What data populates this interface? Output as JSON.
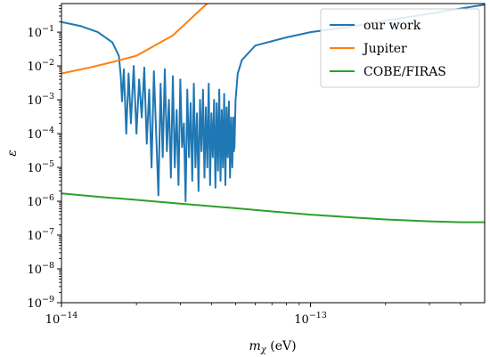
{
  "chart_data": {
    "type": "line",
    "title": "",
    "xlabel": "m_χ (eV)",
    "ylabel": "ε",
    "xscale": "log",
    "yscale": "log",
    "xlim": [
      1e-14,
      5e-13
    ],
    "ylim": [
      1e-09,
      0.7
    ],
    "grid": false,
    "legend_position": "top-right",
    "x_ticks": [
      {
        "value": 1e-14,
        "base": "10",
        "exp": "−14"
      },
      {
        "value": 1e-13,
        "base": "10",
        "exp": "−13"
      }
    ],
    "y_ticks": [
      {
        "value": 1e-09,
        "base": "10",
        "exp": "−9"
      },
      {
        "value": 1e-08,
        "base": "10",
        "exp": "−8"
      },
      {
        "value": 1e-07,
        "base": "10",
        "exp": "−7"
      },
      {
        "value": 1e-06,
        "base": "10",
        "exp": "−6"
      },
      {
        "value": 1e-05,
        "base": "10",
        "exp": "−5"
      },
      {
        "value": 0.0001,
        "base": "10",
        "exp": "−4"
      },
      {
        "value": 0.001,
        "base": "10",
        "exp": "−3"
      },
      {
        "value": 0.01,
        "base": "10",
        "exp": "−2"
      },
      {
        "value": 0.1,
        "base": "10",
        "exp": "−1"
      }
    ],
    "series": [
      {
        "name": "our work",
        "color": "#1f77b4",
        "x": [
          1e-14,
          1.2e-14,
          1.4e-14,
          1.6e-14,
          1.7e-14,
          1.73e-14,
          1.75e-14,
          1.78e-14,
          1.82e-14,
          1.86e-14,
          1.9e-14,
          1.95e-14,
          2e-14,
          2.05e-14,
          2.1e-14,
          2.15e-14,
          2.2e-14,
          2.25e-14,
          2.3e-14,
          2.35e-14,
          2.4e-14,
          2.45e-14,
          2.5e-14,
          2.55e-14,
          2.6e-14,
          2.65e-14,
          2.7e-14,
          2.75e-14,
          2.8e-14,
          2.85e-14,
          2.9e-14,
          2.95e-14,
          3e-14,
          3.05e-14,
          3.1e-14,
          3.15e-14,
          3.2e-14,
          3.25e-14,
          3.3e-14,
          3.35e-14,
          3.4e-14,
          3.45e-14,
          3.5e-14,
          3.55e-14,
          3.6e-14,
          3.65e-14,
          3.7e-14,
          3.75e-14,
          3.8e-14,
          3.85e-14,
          3.9e-14,
          3.95e-14,
          4e-14,
          4.05e-14,
          4.1e-14,
          4.15e-14,
          4.2e-14,
          4.25e-14,
          4.3e-14,
          4.35e-14,
          4.4e-14,
          4.45e-14,
          4.5e-14,
          4.55e-14,
          4.6e-14,
          4.65e-14,
          4.7e-14,
          4.75e-14,
          4.8e-14,
          4.85e-14,
          4.9e-14,
          4.92e-14,
          4.95e-14,
          5e-14,
          5.1e-14,
          5.3e-14,
          6e-14,
          8e-14,
          1e-13,
          1.5e-13,
          2e-13,
          3e-13,
          4e-13,
          5e-13
        ],
        "y": [
          0.2,
          0.15,
          0.1,
          0.05,
          0.02,
          0.005,
          0.0009,
          0.008,
          0.0001,
          0.006,
          0.0002,
          0.01,
          0.0001,
          0.004,
          0.0003,
          0.009,
          5e-05,
          0.002,
          1e-05,
          0.007,
          0.0001,
          1.5e-06,
          0.003,
          2e-05,
          0.008,
          3e-05,
          0.001,
          5e-06,
          0.005,
          1e-05,
          0.0005,
          3e-06,
          0.004,
          4e-05,
          0.0002,
          1e-06,
          0.002,
          2e-05,
          0.0008,
          4e-06,
          0.003,
          1e-05,
          0.0004,
          2e-06,
          0.001,
          3e-05,
          0.002,
          5e-06,
          0.0006,
          1e-05,
          0.003,
          3e-06,
          0.0004,
          2e-05,
          0.001,
          2.5e-06,
          0.0008,
          8e-06,
          0.002,
          4e-06,
          0.0005,
          1e-05,
          0.0015,
          3e-06,
          0.0006,
          2e-05,
          0.0009,
          5e-06,
          0.0003,
          1e-05,
          0.0003,
          3e-05,
          4e-05,
          0.001,
          0.006,
          0.015,
          0.04,
          0.07,
          0.1,
          0.15,
          0.22,
          0.35,
          0.5,
          0.65
        ]
      },
      {
        "name": "Jupiter",
        "color": "#ff7f0e",
        "x": [
          1e-14,
          1.3e-14,
          1.6e-14,
          2e-14,
          2.5e-14,
          2.8e-14,
          3.2e-14,
          3.6e-14,
          4e-14
        ],
        "y": [
          0.006,
          0.009,
          0.013,
          0.02,
          0.05,
          0.08,
          0.2,
          0.45,
          0.9
        ]
      },
      {
        "name": "COBE/FIRAS",
        "color": "#2ca02c",
        "x": [
          1e-14,
          1.5e-14,
          2e-14,
          3e-14,
          5e-14,
          7e-14,
          1e-13,
          1.5e-13,
          2e-13,
          3e-13,
          4e-13,
          5e-13
        ],
        "y": [
          1.7e-06,
          1.3e-06,
          1.1e-06,
          8.5e-07,
          6.2e-07,
          5e-07,
          4e-07,
          3.3e-07,
          2.9e-07,
          2.55e-07,
          2.4e-07,
          2.4e-07
        ]
      }
    ]
  }
}
